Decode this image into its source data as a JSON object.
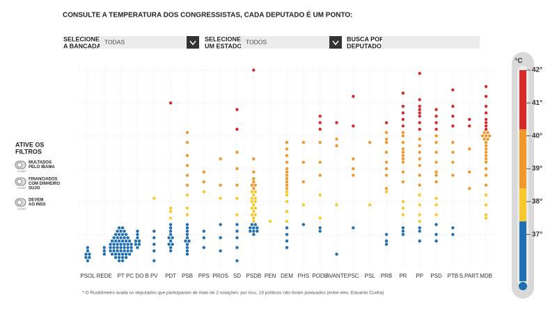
{
  "header": {
    "title": "CONSULTE A TEMPERATURA DOS CONGRESSISTAS, CADA DEPUTADO É UM PONTO:"
  },
  "controls": {
    "party_label": [
      "SELECIONE",
      "A BANCADA"
    ],
    "party_value": "TODAS",
    "state_label": [
      "SELECIONE",
      "UM ESTADO"
    ],
    "state_value": "TODOS",
    "search_label": [
      "BUSCA POR",
      "DEPUTADO"
    ]
  },
  "filters": {
    "title": [
      "ATIVE OS",
      "FILTROS"
    ],
    "items": [
      {
        "label": [
          "MULTADOS",
          "PELO IBAMA"
        ],
        "toggle": "LIGAR"
      },
      {
        "label": [
          "FINANCIADOS",
          "COM DINHEIRO",
          "SUJO"
        ],
        "toggle": "LIGAR"
      },
      {
        "label": [
          "DEVEM",
          "AO INSS"
        ],
        "toggle": "LIGAR"
      }
    ]
  },
  "footnote": "* O Ruralômetro avalia os deputados que participaram de mais de 2 votações; por isso, 19 políticos não foram pontuados (entre eles, Eduardo Cunha)",
  "chart_data": {
    "type": "dot",
    "unit_label": "°C",
    "categories": [
      "PSOL",
      "REDE",
      "PT",
      "PC DO B",
      "PV",
      "PDT",
      "PSB",
      "PPS",
      "PROS",
      "SD",
      "PSDB",
      "PEN",
      "DEM",
      "PHS",
      "PODE",
      "AVANTE",
      "PSC",
      "PSL",
      "PRB",
      "PR",
      "PP",
      "PSD",
      "PTB",
      "S.PART.",
      "MDB"
    ],
    "values": [
      [
        36.2,
        36.3,
        36.4,
        36.5,
        36.6,
        36.4,
        36.3
      ],
      [
        36.4,
        36.5,
        36.6
      ],
      [
        36.2,
        36.2,
        36.3,
        36.3,
        36.3,
        36.3,
        36.4,
        36.4,
        36.4,
        36.4,
        36.4,
        36.4,
        36.5,
        36.5,
        36.5,
        36.5,
        36.5,
        36.5,
        36.5,
        36.6,
        36.6,
        36.6,
        36.6,
        36.6,
        36.6,
        36.6,
        36.7,
        36.7,
        36.7,
        36.7,
        36.7,
        36.7,
        36.7,
        36.8,
        36.8,
        36.8,
        36.8,
        36.8,
        36.8,
        36.9,
        36.9,
        36.9,
        36.9,
        36.9,
        37.0,
        37.0,
        37.0,
        37.0,
        37.1,
        37.1,
        37.1,
        37.2,
        37.2
      ],
      [
        36.6,
        36.7,
        36.7,
        36.8,
        36.8,
        36.9,
        37.0,
        37.1
      ],
      [
        36.2,
        36.5,
        36.7,
        36.9,
        37.1,
        38.1
      ],
      [
        36.5,
        36.6,
        36.7,
        36.7,
        36.8,
        36.9,
        36.9,
        37.0,
        37.1,
        37.2,
        37.3,
        37.5,
        37.7,
        37.8,
        41.0
      ],
      [
        36.4,
        36.5,
        36.6,
        36.7,
        36.8,
        36.8,
        36.9,
        37.0,
        37.1,
        37.2,
        37.3,
        37.6,
        37.8,
        38.2,
        38.5,
        38.8,
        39.1,
        39.4,
        39.8,
        40.1
      ],
      [
        36.6,
        36.9,
        37.1,
        38.3,
        38.6,
        38.9
      ],
      [
        36.5,
        36.9,
        37.3,
        38.1,
        38.5,
        39.3
      ],
      [
        36.2,
        36.6,
        36.9,
        37.1,
        37.3,
        37.6,
        38.1,
        38.5,
        39.0,
        39.5,
        40.2,
        40.8
      ],
      [
        37.0,
        37.1,
        37.1,
        37.1,
        37.2,
        37.2,
        37.2,
        37.3,
        37.3,
        37.4,
        37.5,
        37.6,
        37.6,
        37.7,
        37.8,
        37.8,
        37.9,
        38.0,
        38.0,
        38.1,
        38.1,
        38.2,
        38.3,
        38.3,
        38.4,
        38.5,
        38.5,
        38.6,
        38.7,
        38.9,
        39.3,
        42.0
      ],
      [
        37.4
      ],
      [
        36.6,
        36.8,
        37.0,
        37.2,
        37.4,
        37.7,
        38.0,
        38.2,
        38.3,
        38.4,
        38.5,
        38.6,
        38.7,
        38.8,
        38.9,
        39.0,
        39.2,
        39.4,
        39.6,
        39.8
      ],
      [
        37.3,
        37.9,
        38.6,
        39.2,
        39.8
      ],
      [
        37.1,
        37.2,
        37.5,
        38.2,
        38.8,
        39.2,
        39.8,
        40.2,
        40.4,
        40.6
      ],
      [
        36.4,
        37.9,
        39.7,
        39.9,
        40.4
      ],
      [
        37.2,
        38.8,
        39.0,
        39.3,
        40.3,
        41.2
      ],
      [
        37.9,
        39.8
      ],
      [
        36.7,
        36.8,
        37.0,
        38.3,
        38.4,
        38.8,
        39.0,
        39.2,
        39.5,
        39.8,
        39.9,
        40.1,
        40.4
      ],
      [
        37.0,
        37.1,
        37.2,
        37.6,
        37.8,
        38.0,
        38.6,
        38.9,
        39.2,
        39.3,
        39.4,
        39.5,
        39.6,
        39.8,
        40.0,
        40.1,
        40.3,
        40.5,
        40.7,
        40.9,
        41.3
      ],
      [
        36.8,
        37.1,
        37.2,
        37.4,
        37.6,
        37.9,
        38.2,
        38.5,
        38.8,
        39.1,
        39.3,
        39.5,
        39.7,
        39.9,
        40.2,
        40.4,
        40.6,
        40.7,
        40.8,
        40.9,
        41.1,
        41.9
      ],
      [
        36.8,
        37.0,
        37.3,
        37.6,
        37.9,
        38.1,
        38.6,
        38.8,
        38.9,
        39.2,
        39.5,
        39.8,
        40.0,
        40.2,
        40.4,
        40.6,
        40.8
      ],
      [
        37.0,
        37.2,
        38.8,
        39.2,
        39.5,
        39.8,
        40.3,
        40.6,
        40.9,
        41.4
      ],
      [
        38.4,
        38.9,
        39.6,
        40.3,
        40.5
      ],
      [
        37.5,
        37.6,
        37.9,
        38.2,
        38.5,
        38.8,
        39.0,
        39.2,
        39.3,
        39.4,
        39.5,
        39.6,
        39.7,
        39.8,
        39.9,
        39.9,
        40.0,
        40.0,
        40.0,
        40.1,
        40.1,
        40.2,
        40.3,
        40.4,
        40.5,
        40.7,
        40.9,
        41.2,
        41.5
      ]
    ],
    "ylim": [
      36,
      42
    ],
    "yticks": [
      {
        "value": 37,
        "label": "37°"
      },
      {
        "value": 38,
        "label": "38°"
      },
      {
        "value": 39,
        "label": "39°"
      },
      {
        "value": 40,
        "label": "40°"
      },
      {
        "value": 41,
        "label": "41°"
      },
      {
        "value": 42,
        "label": "42°"
      }
    ],
    "grid": true,
    "color_stops": [
      {
        "from": 36,
        "color": "#1f6fb2"
      },
      {
        "from": 37.4,
        "color": "#f6c92e"
      },
      {
        "from": 38.4,
        "color": "#f0982c"
      },
      {
        "from": 40.2,
        "color": "#d42a2a"
      }
    ]
  }
}
